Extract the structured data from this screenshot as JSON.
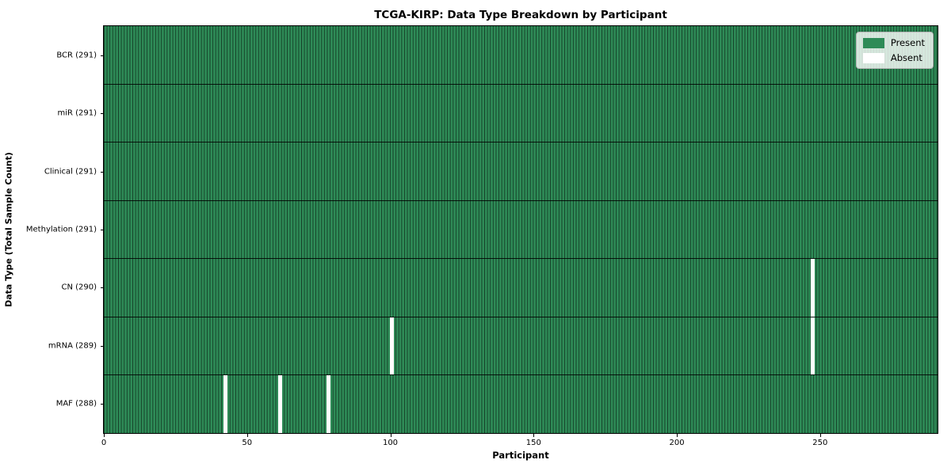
{
  "chart_data": {
    "type": "heatmap",
    "title": "TCGA-KIRP: Data Type Breakdown by Participant",
    "xlabel": "Participant",
    "ylabel": "Data Type (Total Sample Count)",
    "n_participants": 291,
    "xlim": [
      0,
      291
    ],
    "x_ticks": [
      0,
      50,
      100,
      150,
      200,
      250
    ],
    "rows": [
      {
        "name": "BCR",
        "label": "BCR (291)",
        "total_samples": 291,
        "absent_participants": []
      },
      {
        "name": "miR",
        "label": "miR (291)",
        "total_samples": 291,
        "absent_participants": []
      },
      {
        "name": "Clinical",
        "label": "Clinical (291)",
        "total_samples": 291,
        "absent_participants": []
      },
      {
        "name": "Methylation",
        "label": "Methylation (291)",
        "total_samples": 291,
        "absent_participants": []
      },
      {
        "name": "CN",
        "label": "CN (290)",
        "total_samples": 290,
        "absent_participants": [
          247
        ]
      },
      {
        "name": "mRNA",
        "label": "mRNA (289)",
        "total_samples": 289,
        "absent_participants": [
          100,
          247
        ]
      },
      {
        "name": "MAF",
        "label": "MAF (288)",
        "total_samples": 288,
        "absent_participants": [
          42,
          61,
          78
        ]
      }
    ],
    "legend": {
      "position": "upper right",
      "entries": [
        {
          "label": "Present",
          "color": "#2e8b57"
        },
        {
          "label": "Absent",
          "color": "#ffffff"
        }
      ]
    },
    "colors": {
      "present": "#2e8b57",
      "absent": "#ffffff",
      "cell_grid_line": "rgba(0,0,0,0.55)",
      "row_separator": "rgba(0,0,0,0.85)",
      "legend_background": "rgba(255,255,255,0.8)",
      "legend_border": "#b5b5b5",
      "axis_color": "#000000"
    },
    "grid": "cell borders on, vertical per participant, horizontal per row"
  }
}
